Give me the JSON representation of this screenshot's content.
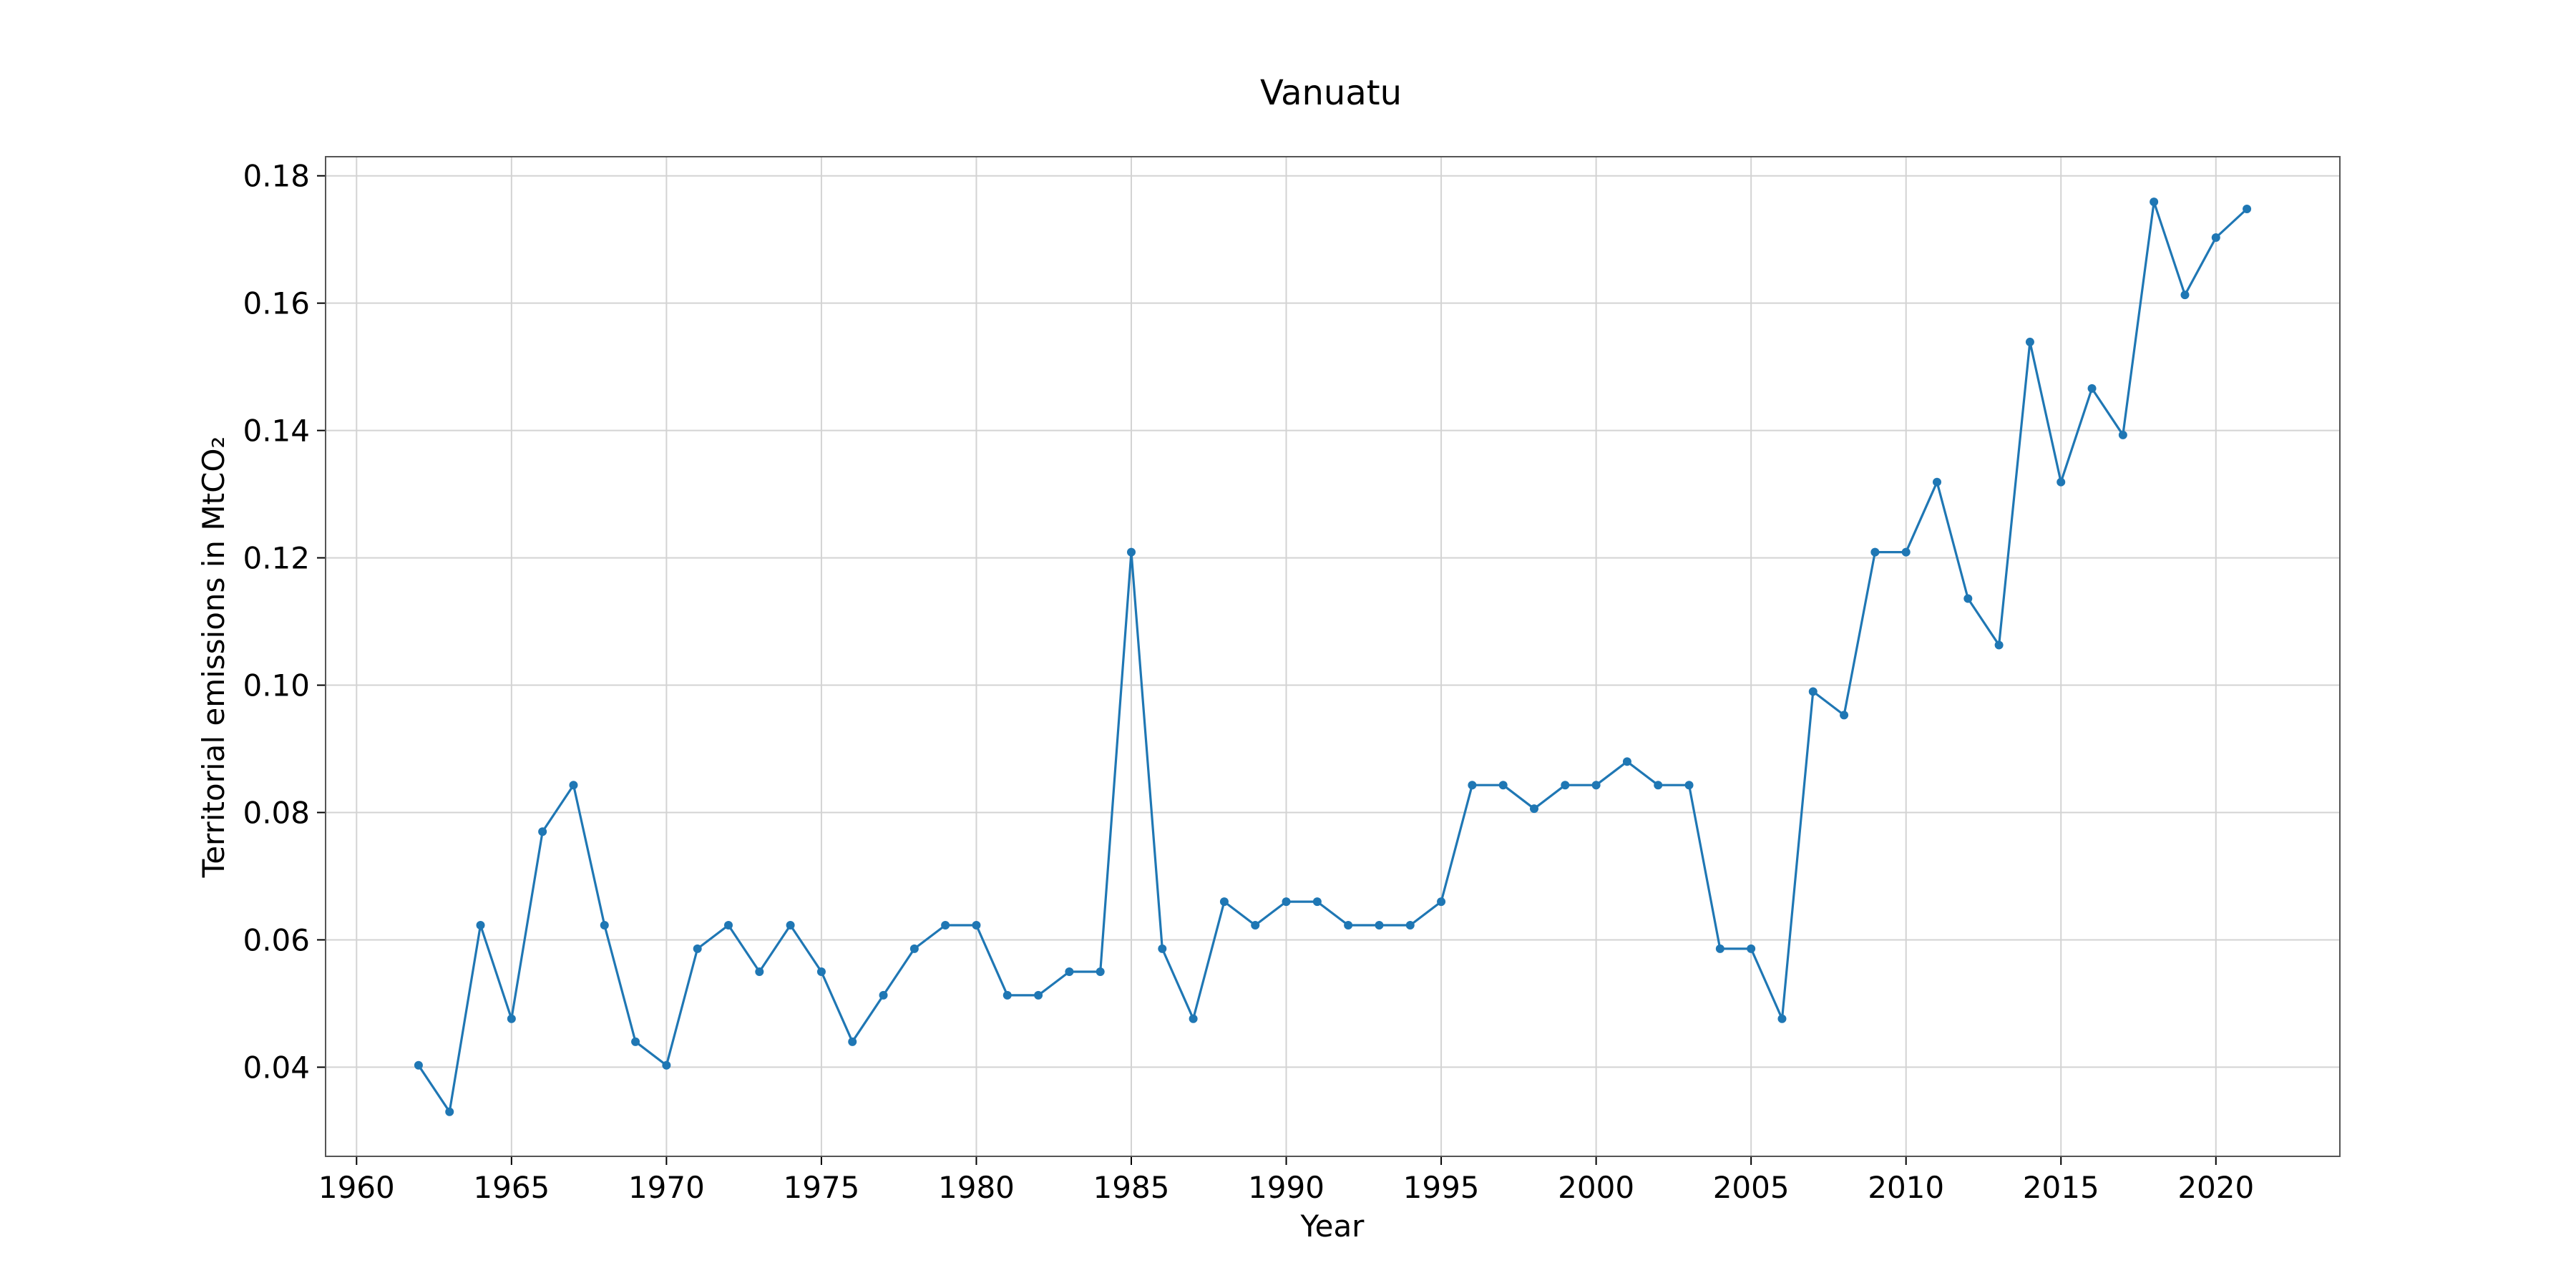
{
  "colors": {
    "series": "#1f77b4"
  },
  "chart_data": {
    "type": "line",
    "title": "Vanuatu",
    "xlabel": "Year",
    "ylabel": "Territorial emissions in MtCO₂",
    "xlim": [
      1959,
      2024
    ],
    "ylim": [
      0.026,
      0.183
    ],
    "grid": true,
    "marker": "circle",
    "x_ticks": [
      1960,
      1965,
      1970,
      1975,
      1980,
      1985,
      1990,
      1995,
      2000,
      2005,
      2010,
      2015,
      2020
    ],
    "y_ticks": [
      0.04,
      0.06,
      0.08,
      0.1,
      0.12,
      0.14,
      0.16,
      0.18
    ],
    "x_tick_labels": [
      "1960",
      "1965",
      "1970",
      "1975",
      "1980",
      "1985",
      "1990",
      "1995",
      "2000",
      "2005",
      "2010",
      "2015",
      "2020"
    ],
    "y_tick_labels": [
      "0.04",
      "0.06",
      "0.08",
      "0.10",
      "0.12",
      "0.14",
      "0.16",
      "0.18"
    ],
    "x": [
      1962,
      1963,
      1964,
      1965,
      1966,
      1967,
      1968,
      1969,
      1970,
      1971,
      1972,
      1973,
      1974,
      1975,
      1976,
      1977,
      1978,
      1979,
      1980,
      1981,
      1982,
      1983,
      1984,
      1985,
      1986,
      1987,
      1988,
      1989,
      1990,
      1991,
      1992,
      1993,
      1994,
      1995,
      1996,
      1997,
      1998,
      1999,
      2000,
      2001,
      2002,
      2003,
      2004,
      2005,
      2006,
      2007,
      2008,
      2009,
      2010,
      2011,
      2012,
      2013,
      2014,
      2015,
      2016,
      2017,
      2018,
      2019,
      2020,
      2021
    ],
    "series": [
      {
        "values": [
          0.0403,
          0.033,
          0.0623,
          0.0476,
          0.077,
          0.0843,
          0.0623,
          0.044,
          0.0403,
          0.0586,
          0.0623,
          0.055,
          0.0623,
          0.055,
          0.044,
          0.0513,
          0.0586,
          0.0623,
          0.0623,
          0.0513,
          0.0513,
          0.055,
          0.055,
          0.1209,
          0.0586,
          0.0476,
          0.066,
          0.0623,
          0.066,
          0.066,
          0.0623,
          0.0623,
          0.0623,
          0.066,
          0.0843,
          0.0843,
          0.0806,
          0.0843,
          0.0843,
          0.088,
          0.0843,
          0.0843,
          0.0586,
          0.0586,
          0.0476,
          0.099,
          0.0953,
          0.1209,
          0.1209,
          0.1319,
          0.1136,
          0.1063,
          0.1539,
          0.1319,
          0.1466,
          0.1393,
          0.1759,
          0.1613,
          0.1703,
          0.1748
        ]
      }
    ]
  }
}
